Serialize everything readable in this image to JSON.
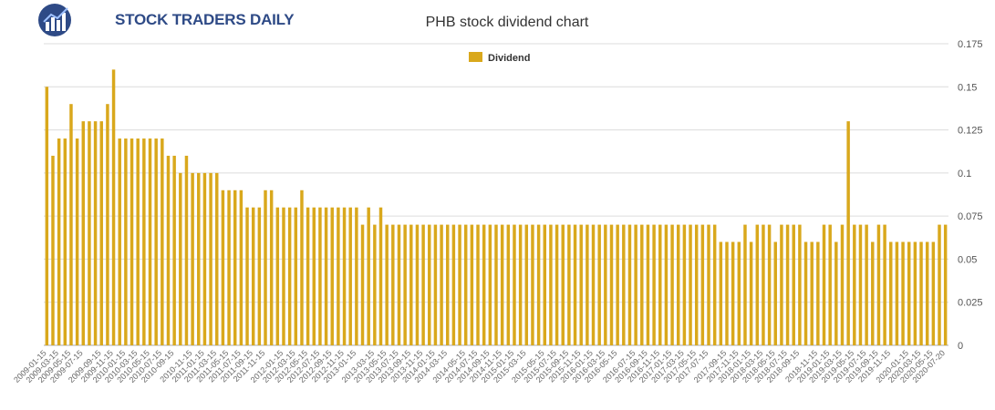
{
  "logo": {
    "text": "STOCK TRADERS DAILY"
  },
  "colors": {
    "bar": "#D9A81C",
    "grid": "#dcdcdc",
    "axis": "#aaaaaa",
    "brand": "#2e4a86"
  },
  "chart_data": {
    "type": "bar",
    "title": "PHB stock dividend chart",
    "legend": {
      "label": "Dividend",
      "position": "top-center"
    },
    "xlabel": "",
    "ylabel": "",
    "ylim": [
      0,
      0.175
    ],
    "yticks": [
      0,
      0.025,
      0.05,
      0.075,
      0.1,
      0.125,
      0.15,
      0.175
    ],
    "ytick_labels": [
      "0",
      "0.025",
      "0.05",
      "0.075",
      "0.1",
      "0.125",
      "0.15",
      "0.175"
    ],
    "grid": true,
    "x_tick_labels_shown": [
      "2009-01-15",
      "2009-03-15",
      "2009-05-15",
      "2009-07-15",
      "2009-09-15",
      "2009-11-15",
      "2010-01-15",
      "2010-03-15",
      "2010-05-15",
      "2010-07-15",
      "2010-09-15",
      "2010-11-15",
      "2011-01-15",
      "2011-03-15",
      "2011-05-15",
      "2011-07-15",
      "2011-09-15",
      "2011-11-15",
      "2012-01-15",
      "2012-03-15",
      "2012-05-15",
      "2012-07-15",
      "2012-09-15",
      "2012-11-15",
      "2013-01-15",
      "2013-03-15",
      "2013-05-15",
      "2013-07-15",
      "2013-09-15",
      "2013-11-15",
      "2014-01-15",
      "2014-03-15",
      "2014-05-15",
      "2014-07-15",
      "2014-09-15",
      "2014-11-15",
      "2015-01-15",
      "2015-03-15",
      "2015-05-15",
      "2015-07-15",
      "2015-09-15",
      "2015-11-15",
      "2016-01-15",
      "2016-03-15",
      "2016-05-15",
      "2016-07-15",
      "2016-09-15",
      "2016-11-15",
      "2017-01-15",
      "2017-03-15",
      "2017-05-15",
      "2017-07-15",
      "2017-09-15",
      "2017-11-15",
      "2018-01-15",
      "2018-03-15",
      "2018-05-15",
      "2018-07-15",
      "2018-09-15",
      "2018-11-15",
      "2019-01-15",
      "2019-03-15",
      "2019-05-15",
      "2019-07-15",
      "2019-09-15",
      "2019-11-15",
      "2020-01-15",
      "2020-03-15",
      "2020-05-15",
      "2020-07-20"
    ],
    "series": [
      {
        "name": "Dividend",
        "values": [
          0.15,
          0.11,
          0.12,
          0.12,
          0.14,
          0.12,
          0.13,
          0.13,
          0.13,
          0.13,
          0.14,
          0.16,
          0.12,
          0.12,
          0.12,
          0.12,
          0.12,
          0.12,
          0.12,
          0.12,
          0.11,
          0.11,
          0.1,
          0.11,
          0.1,
          0.1,
          0.1,
          0.1,
          0.1,
          0.09,
          0.09,
          0.09,
          0.09,
          0.08,
          0.08,
          0.08,
          0.09,
          0.09,
          0.08,
          0.08,
          0.08,
          0.08,
          0.09,
          0.08,
          0.08,
          0.08,
          0.08,
          0.08,
          0.08,
          0.08,
          0.08,
          0.08,
          0.07,
          0.08,
          0.07,
          0.08,
          0.07,
          0.07,
          0.07,
          0.07,
          0.07,
          0.07,
          0.07,
          0.07,
          0.07,
          0.07,
          0.07,
          0.07,
          0.07,
          0.07,
          0.07,
          0.07,
          0.07,
          0.07,
          0.07,
          0.07,
          0.07,
          0.07,
          0.07,
          0.07,
          0.07,
          0.07,
          0.07,
          0.07,
          0.07,
          0.07,
          0.07,
          0.07,
          0.07,
          0.07,
          0.07,
          0.07,
          0.07,
          0.07,
          0.07,
          0.07,
          0.07,
          0.07,
          0.07,
          0.07,
          0.07,
          0.07,
          0.07,
          0.07,
          0.07,
          0.07,
          0.07,
          0.07,
          0.07,
          0.07,
          0.07,
          0.06,
          0.06,
          0.06,
          0.06,
          0.07,
          0.06,
          0.07,
          0.07,
          0.07,
          0.06,
          0.07,
          0.07,
          0.07,
          0.07,
          0.06,
          0.06,
          0.06,
          0.07,
          0.07,
          0.06,
          0.07,
          0.13,
          0.07,
          0.07,
          0.07,
          0.06,
          0.07,
          0.07,
          0.06,
          0.06,
          0.06,
          0.06,
          0.06,
          0.06,
          0.06,
          0.06,
          0.07,
          0.07
        ]
      }
    ]
  }
}
